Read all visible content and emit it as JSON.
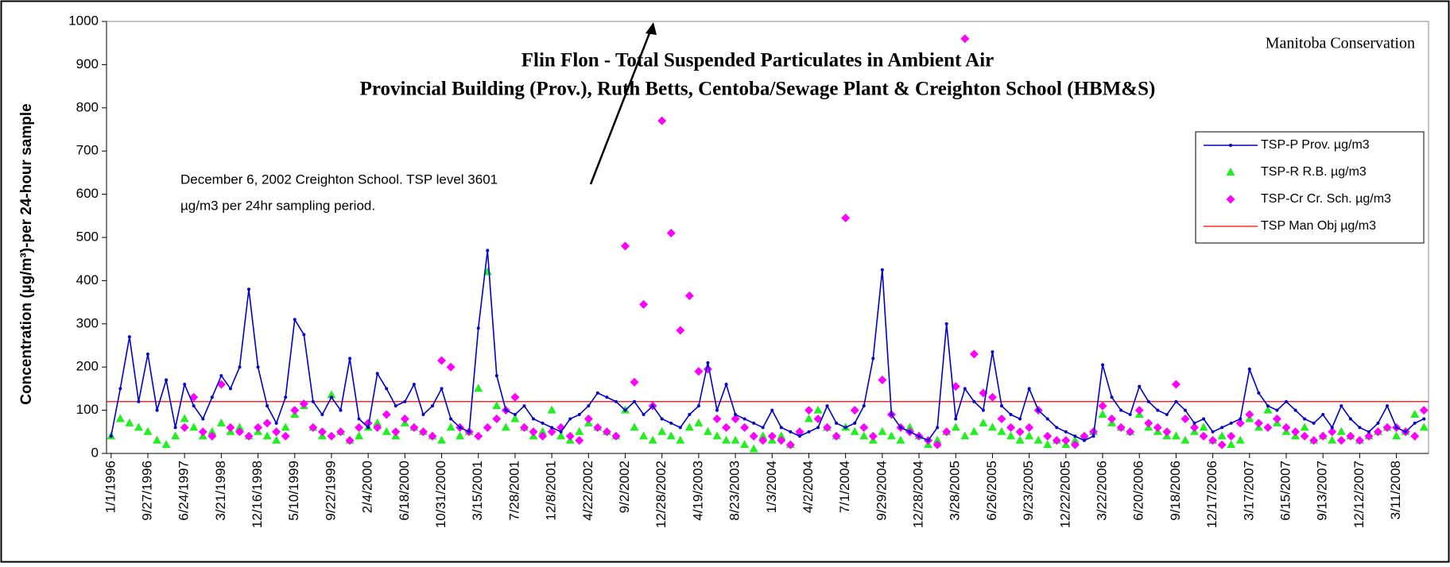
{
  "chart_data": {
    "type": "line_scatter",
    "title": "Flin Flon - Total Suspended Particulates in Ambient Air",
    "subtitle": "Provincial Building (Prov.), Ruth Betts, Centoba/Sewage Plant & Creighton School (HBM&S)",
    "source": "Manitoba Conservation",
    "annotation": [
      "December 6, 2002 Creighton School. TSP level 3601",
      "µg/m3 per 24hr sampling period."
    ],
    "y_label": "Concentration  (µg/m³)-per 24-hour sample",
    "ylim": [
      0,
      1000
    ],
    "yticks": [
      0,
      100,
      200,
      300,
      400,
      500,
      600,
      700,
      800,
      900,
      1000
    ],
    "categories": [
      "1/1/1996",
      null,
      null,
      null,
      "9/27/1996",
      null,
      null,
      null,
      "6/24/1997",
      null,
      null,
      null,
      "3/21/1998",
      null,
      null,
      null,
      "12/16/1998",
      null,
      null,
      null,
      "5/10/1999",
      null,
      null,
      null,
      "9/22/1999",
      null,
      null,
      null,
      "2/4/2000",
      null,
      null,
      null,
      "6/18/2000",
      null,
      null,
      null,
      "10/31/2000",
      null,
      null,
      null,
      "3/15/2001",
      null,
      null,
      null,
      "7/28/2001",
      null,
      null,
      null,
      "12/8/2001",
      null,
      null,
      null,
      "4/22/2002",
      null,
      null,
      null,
      "9/2/2002",
      null,
      null,
      null,
      "12/28/2002",
      null,
      null,
      null,
      "4/19/2003",
      null,
      null,
      null,
      "8/23/2003",
      null,
      null,
      null,
      "1/3/2004",
      null,
      null,
      null,
      "4/2/2004",
      null,
      null,
      null,
      "7/1/2004",
      null,
      null,
      null,
      "9/29/2004",
      null,
      null,
      null,
      "12/28/2004",
      null,
      null,
      null,
      "3/28/2005",
      null,
      null,
      null,
      "6/26/2005",
      null,
      null,
      null,
      "9/23/2005",
      null,
      null,
      null,
      "12/22/2005",
      null,
      null,
      null,
      "3/22/2006",
      null,
      null,
      null,
      "6/20/2006",
      null,
      null,
      null,
      "9/18/2006",
      null,
      null,
      null,
      "12/17/2006",
      null,
      null,
      null,
      "3/17/2007",
      null,
      null,
      null,
      "6/15/2007",
      null,
      null,
      null,
      "9/13/2007",
      null,
      null,
      null,
      "12/12/2007",
      null,
      null,
      null,
      "3/11/2008",
      null,
      null,
      null
    ],
    "series": [
      {
        "name": "TSP-P Prov. µg/m3",
        "color": "#0000cc",
        "marker": "line",
        "values": [
          40,
          150,
          270,
          120,
          230,
          100,
          170,
          60,
          160,
          110,
          80,
          130,
          180,
          150,
          200,
          380,
          200,
          110,
          70,
          130,
          310,
          275,
          120,
          90,
          130,
          100,
          220,
          80,
          60,
          185,
          150,
          110,
          120,
          160,
          90,
          110,
          150,
          80,
          60,
          50,
          290,
          470,
          180,
          100,
          90,
          110,
          80,
          70,
          60,
          50,
          80,
          90,
          110,
          140,
          130,
          120,
          100,
          120,
          90,
          110,
          80,
          70,
          60,
          90,
          110,
          210,
          100,
          160,
          90,
          80,
          70,
          60,
          100,
          60,
          50,
          40,
          50,
          60,
          110,
          70,
          60,
          70,
          110,
          220,
          425,
          90,
          60,
          50,
          40,
          30,
          60,
          300,
          80,
          150,
          120,
          100,
          235,
          110,
          90,
          80,
          150,
          100,
          80,
          60,
          50,
          40,
          30,
          40,
          205,
          130,
          100,
          90,
          155,
          120,
          100,
          90,
          120,
          100,
          70,
          80,
          50,
          60,
          70,
          80,
          195,
          140,
          110,
          100,
          120,
          100,
          80,
          70,
          90,
          60,
          110,
          80,
          60,
          50,
          70,
          110,
          60,
          50,
          70,
          80
        ]
      },
      {
        "name": "TSP-R R.B. µg/m3",
        "color": "#22ee22",
        "marker": "triangle",
        "values": [
          40,
          80,
          70,
          60,
          50,
          30,
          20,
          40,
          80,
          60,
          40,
          50,
          70,
          50,
          60,
          40,
          50,
          40,
          30,
          60,
          90,
          110,
          60,
          40,
          135,
          50,
          30,
          40,
          60,
          70,
          50,
          40,
          70,
          60,
          50,
          40,
          30,
          60,
          40,
          50,
          150,
          420,
          110,
          60,
          80,
          60,
          40,
          50,
          100,
          40,
          30,
          50,
          70,
          60,
          50,
          40,
          100,
          60,
          40,
          30,
          50,
          40,
          30,
          60,
          70,
          50,
          40,
          30,
          30,
          20,
          10,
          40,
          30,
          40,
          20,
          50,
          80,
          100,
          60,
          40,
          60,
          50,
          40,
          30,
          50,
          40,
          30,
          60,
          40,
          20,
          30,
          50,
          60,
          40,
          50,
          70,
          60,
          50,
          40,
          30,
          40,
          30,
          20,
          30,
          20,
          30,
          40,
          50,
          90,
          70,
          60,
          50,
          90,
          60,
          50,
          40,
          40,
          30,
          50,
          60,
          30,
          40,
          20,
          30,
          80,
          60,
          100,
          70,
          50,
          40,
          60,
          30,
          40,
          30,
          50,
          40,
          30,
          40,
          50,
          60,
          40,
          50,
          90,
          60
        ]
      },
      {
        "name": "TSP-Cr Cr. Sch. µg/m3",
        "color": "#ff00ff",
        "marker": "diamond",
        "values": [
          null,
          null,
          null,
          null,
          null,
          null,
          null,
          null,
          60,
          130,
          50,
          40,
          160,
          60,
          50,
          40,
          60,
          70,
          50,
          40,
          100,
          115,
          60,
          50,
          40,
          50,
          30,
          60,
          70,
          60,
          90,
          50,
          80,
          60,
          50,
          40,
          215,
          200,
          60,
          50,
          40,
          60,
          80,
          100,
          130,
          60,
          50,
          40,
          50,
          60,
          40,
          30,
          80,
          60,
          50,
          40,
          480,
          165,
          345,
          110,
          770,
          510,
          285,
          365,
          190,
          195,
          80,
          60,
          80,
          60,
          40,
          30,
          40,
          30,
          20,
          50,
          100,
          80,
          60,
          40,
          545,
          100,
          60,
          40,
          170,
          90,
          60,
          50,
          40,
          30,
          20,
          50,
          155,
          960,
          230,
          140,
          130,
          80,
          60,
          50,
          60,
          100,
          40,
          30,
          30,
          20,
          40,
          50,
          110,
          80,
          60,
          50,
          100,
          70,
          60,
          50,
          160,
          80,
          60,
          40,
          30,
          20,
          40,
          70,
          90,
          70,
          60,
          80,
          60,
          50,
          40,
          30,
          40,
          50,
          30,
          40,
          30,
          40,
          50,
          60,
          60,
          50,
          40,
          100
        ]
      }
    ],
    "reference_lines": [
      {
        "name": "TSP Man Obj µg/m3",
        "value": 120,
        "color": "#ff0000"
      }
    ],
    "legend": "upper right"
  }
}
